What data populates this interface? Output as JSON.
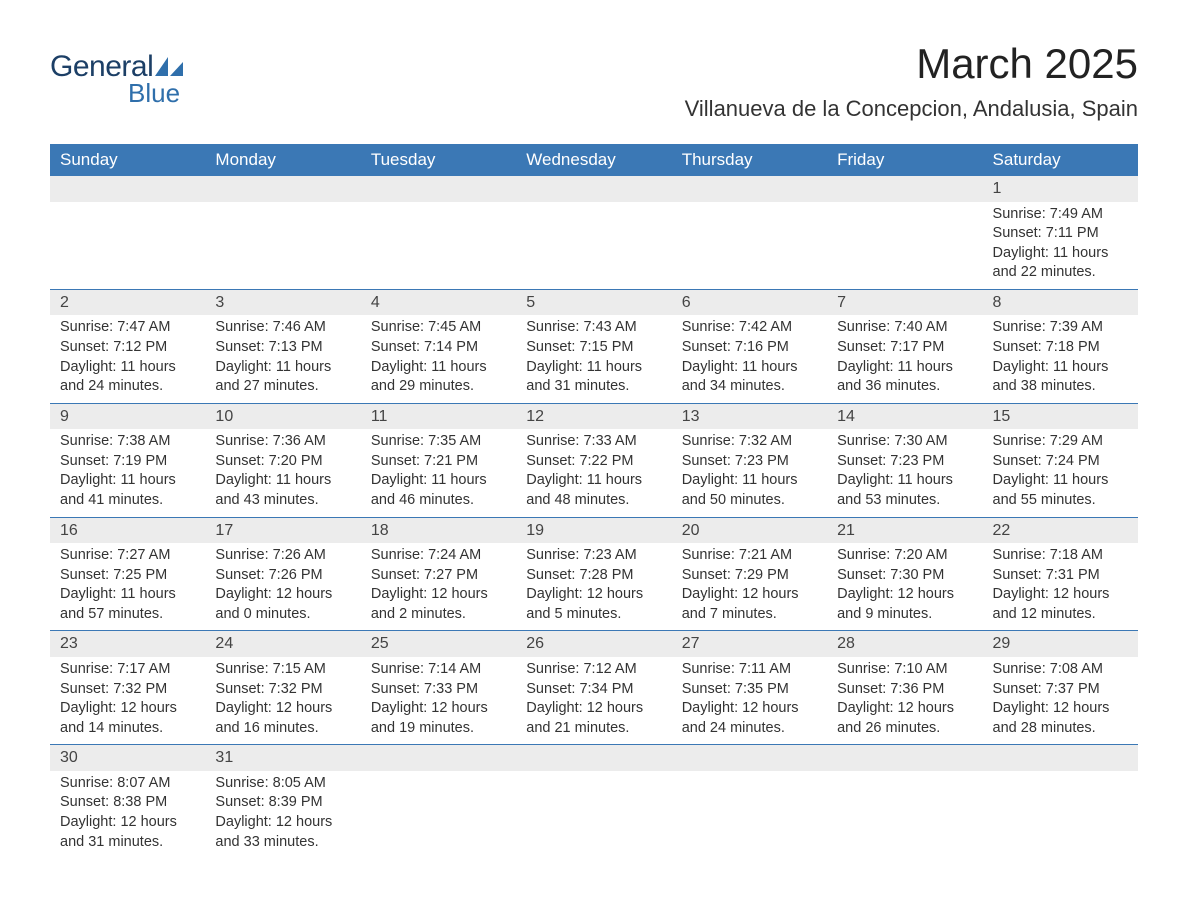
{
  "brand": {
    "word1": "General",
    "word2": "Blue",
    "shape_color": "#2f6fab",
    "word1_color": "#1c3f66"
  },
  "title": "March 2025",
  "location": "Villanueva de la Concepcion, Andalusia, Spain",
  "colors": {
    "header_bg": "#3b78b5",
    "header_text": "#ffffff",
    "daynum_bg": "#ececec",
    "row_divider": "#3b78b5",
    "body_text": "#333333"
  },
  "day_headers": [
    "Sunday",
    "Monday",
    "Tuesday",
    "Wednesday",
    "Thursday",
    "Friday",
    "Saturday"
  ],
  "weeks": [
    [
      null,
      null,
      null,
      null,
      null,
      null,
      {
        "n": "1",
        "sunrise": "Sunrise: 7:49 AM",
        "sunset": "Sunset: 7:11 PM",
        "d1": "Daylight: 11 hours",
        "d2": "and 22 minutes."
      }
    ],
    [
      {
        "n": "2",
        "sunrise": "Sunrise: 7:47 AM",
        "sunset": "Sunset: 7:12 PM",
        "d1": "Daylight: 11 hours",
        "d2": "and 24 minutes."
      },
      {
        "n": "3",
        "sunrise": "Sunrise: 7:46 AM",
        "sunset": "Sunset: 7:13 PM",
        "d1": "Daylight: 11 hours",
        "d2": "and 27 minutes."
      },
      {
        "n": "4",
        "sunrise": "Sunrise: 7:45 AM",
        "sunset": "Sunset: 7:14 PM",
        "d1": "Daylight: 11 hours",
        "d2": "and 29 minutes."
      },
      {
        "n": "5",
        "sunrise": "Sunrise: 7:43 AM",
        "sunset": "Sunset: 7:15 PM",
        "d1": "Daylight: 11 hours",
        "d2": "and 31 minutes."
      },
      {
        "n": "6",
        "sunrise": "Sunrise: 7:42 AM",
        "sunset": "Sunset: 7:16 PM",
        "d1": "Daylight: 11 hours",
        "d2": "and 34 minutes."
      },
      {
        "n": "7",
        "sunrise": "Sunrise: 7:40 AM",
        "sunset": "Sunset: 7:17 PM",
        "d1": "Daylight: 11 hours",
        "d2": "and 36 minutes."
      },
      {
        "n": "8",
        "sunrise": "Sunrise: 7:39 AM",
        "sunset": "Sunset: 7:18 PM",
        "d1": "Daylight: 11 hours",
        "d2": "and 38 minutes."
      }
    ],
    [
      {
        "n": "9",
        "sunrise": "Sunrise: 7:38 AM",
        "sunset": "Sunset: 7:19 PM",
        "d1": "Daylight: 11 hours",
        "d2": "and 41 minutes."
      },
      {
        "n": "10",
        "sunrise": "Sunrise: 7:36 AM",
        "sunset": "Sunset: 7:20 PM",
        "d1": "Daylight: 11 hours",
        "d2": "and 43 minutes."
      },
      {
        "n": "11",
        "sunrise": "Sunrise: 7:35 AM",
        "sunset": "Sunset: 7:21 PM",
        "d1": "Daylight: 11 hours",
        "d2": "and 46 minutes."
      },
      {
        "n": "12",
        "sunrise": "Sunrise: 7:33 AM",
        "sunset": "Sunset: 7:22 PM",
        "d1": "Daylight: 11 hours",
        "d2": "and 48 minutes."
      },
      {
        "n": "13",
        "sunrise": "Sunrise: 7:32 AM",
        "sunset": "Sunset: 7:23 PM",
        "d1": "Daylight: 11 hours",
        "d2": "and 50 minutes."
      },
      {
        "n": "14",
        "sunrise": "Sunrise: 7:30 AM",
        "sunset": "Sunset: 7:23 PM",
        "d1": "Daylight: 11 hours",
        "d2": "and 53 minutes."
      },
      {
        "n": "15",
        "sunrise": "Sunrise: 7:29 AM",
        "sunset": "Sunset: 7:24 PM",
        "d1": "Daylight: 11 hours",
        "d2": "and 55 minutes."
      }
    ],
    [
      {
        "n": "16",
        "sunrise": "Sunrise: 7:27 AM",
        "sunset": "Sunset: 7:25 PM",
        "d1": "Daylight: 11 hours",
        "d2": "and 57 minutes."
      },
      {
        "n": "17",
        "sunrise": "Sunrise: 7:26 AM",
        "sunset": "Sunset: 7:26 PM",
        "d1": "Daylight: 12 hours",
        "d2": "and 0 minutes."
      },
      {
        "n": "18",
        "sunrise": "Sunrise: 7:24 AM",
        "sunset": "Sunset: 7:27 PM",
        "d1": "Daylight: 12 hours",
        "d2": "and 2 minutes."
      },
      {
        "n": "19",
        "sunrise": "Sunrise: 7:23 AM",
        "sunset": "Sunset: 7:28 PM",
        "d1": "Daylight: 12 hours",
        "d2": "and 5 minutes."
      },
      {
        "n": "20",
        "sunrise": "Sunrise: 7:21 AM",
        "sunset": "Sunset: 7:29 PM",
        "d1": "Daylight: 12 hours",
        "d2": "and 7 minutes."
      },
      {
        "n": "21",
        "sunrise": "Sunrise: 7:20 AM",
        "sunset": "Sunset: 7:30 PM",
        "d1": "Daylight: 12 hours",
        "d2": "and 9 minutes."
      },
      {
        "n": "22",
        "sunrise": "Sunrise: 7:18 AM",
        "sunset": "Sunset: 7:31 PM",
        "d1": "Daylight: 12 hours",
        "d2": "and 12 minutes."
      }
    ],
    [
      {
        "n": "23",
        "sunrise": "Sunrise: 7:17 AM",
        "sunset": "Sunset: 7:32 PM",
        "d1": "Daylight: 12 hours",
        "d2": "and 14 minutes."
      },
      {
        "n": "24",
        "sunrise": "Sunrise: 7:15 AM",
        "sunset": "Sunset: 7:32 PM",
        "d1": "Daylight: 12 hours",
        "d2": "and 16 minutes."
      },
      {
        "n": "25",
        "sunrise": "Sunrise: 7:14 AM",
        "sunset": "Sunset: 7:33 PM",
        "d1": "Daylight: 12 hours",
        "d2": "and 19 minutes."
      },
      {
        "n": "26",
        "sunrise": "Sunrise: 7:12 AM",
        "sunset": "Sunset: 7:34 PM",
        "d1": "Daylight: 12 hours",
        "d2": "and 21 minutes."
      },
      {
        "n": "27",
        "sunrise": "Sunrise: 7:11 AM",
        "sunset": "Sunset: 7:35 PM",
        "d1": "Daylight: 12 hours",
        "d2": "and 24 minutes."
      },
      {
        "n": "28",
        "sunrise": "Sunrise: 7:10 AM",
        "sunset": "Sunset: 7:36 PM",
        "d1": "Daylight: 12 hours",
        "d2": "and 26 minutes."
      },
      {
        "n": "29",
        "sunrise": "Sunrise: 7:08 AM",
        "sunset": "Sunset: 7:37 PM",
        "d1": "Daylight: 12 hours",
        "d2": "and 28 minutes."
      }
    ],
    [
      {
        "n": "30",
        "sunrise": "Sunrise: 8:07 AM",
        "sunset": "Sunset: 8:38 PM",
        "d1": "Daylight: 12 hours",
        "d2": "and 31 minutes."
      },
      {
        "n": "31",
        "sunrise": "Sunrise: 8:05 AM",
        "sunset": "Sunset: 8:39 PM",
        "d1": "Daylight: 12 hours",
        "d2": "and 33 minutes."
      },
      null,
      null,
      null,
      null,
      null
    ]
  ]
}
